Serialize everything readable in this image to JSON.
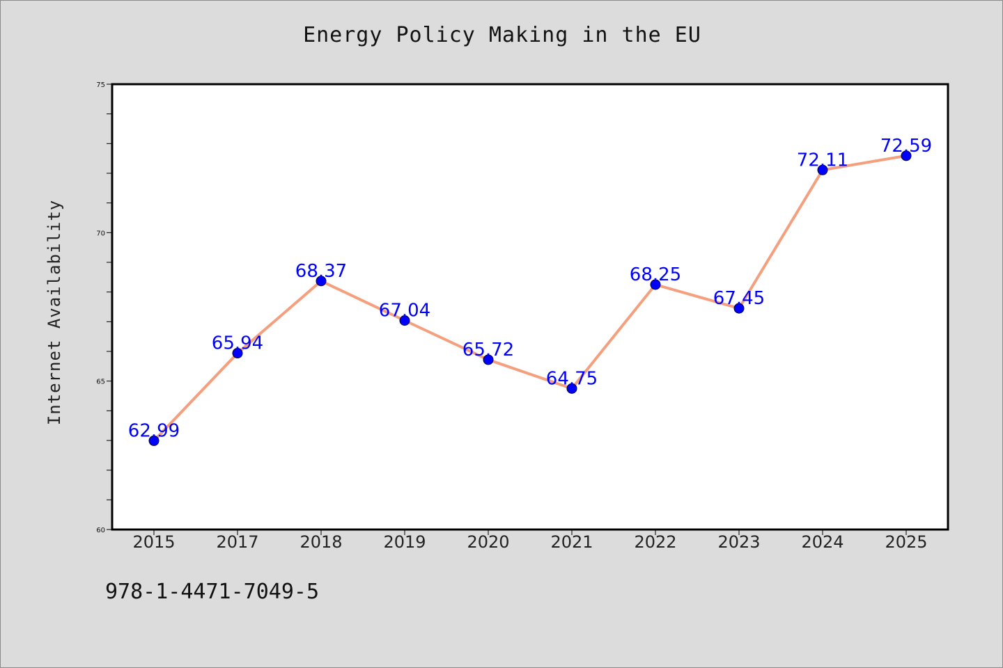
{
  "chart_data": {
    "type": "line",
    "title": "Energy Policy Making in the EU",
    "xlabel": "",
    "ylabel": "Internet Availability",
    "categories": [
      "2015",
      "2017",
      "2018",
      "2019",
      "2020",
      "2021",
      "2022",
      "2023",
      "2024",
      "2025"
    ],
    "series": [
      {
        "values": [
          62.99,
          65.94,
          68.37,
          67.04,
          65.72,
          64.75,
          68.25,
          67.45,
          72.11,
          72.59
        ]
      }
    ],
    "ylim": [
      60,
      75
    ],
    "y_ticks": [
      "60",
      "65",
      "70",
      "75"
    ],
    "y_minor_step": 1,
    "grid": false,
    "data_labels": true,
    "colors": {
      "line": "#f4a07f",
      "marker": "#0000ff",
      "label": "#0000ff",
      "background": "#dcdcdc",
      "plot_area": "#ffffff"
    }
  },
  "footer": {
    "code": "978-1-4471-7049-5"
  }
}
